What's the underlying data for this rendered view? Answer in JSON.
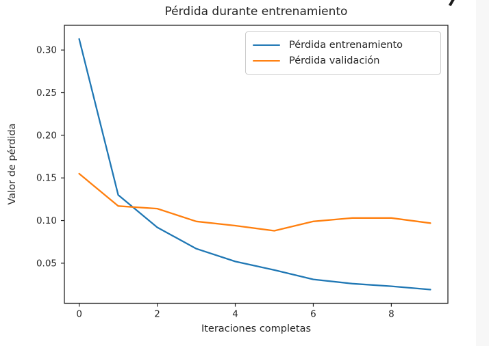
{
  "chart_data": {
    "type": "line",
    "title": "Pérdida durante entrenamiento",
    "xlabel": "Iteraciones completas",
    "ylabel": "Valor de pérdida",
    "grid": false,
    "legend_position": "upper right",
    "x": [
      0,
      1,
      2,
      3,
      4,
      5,
      6,
      7,
      8,
      9
    ],
    "series": [
      {
        "name": "Pérdida entrenamiento",
        "color": "#1f77b4",
        "values": [
          0.313,
          0.13,
          0.092,
          0.067,
          0.052,
          0.042,
          0.031,
          0.026,
          0.023,
          0.019
        ]
      },
      {
        "name": "Pérdida validación",
        "color": "#ff7f0e",
        "values": [
          0.155,
          0.117,
          0.114,
          0.099,
          0.094,
          0.088,
          0.099,
          0.103,
          0.103,
          0.097
        ]
      }
    ],
    "xlim": [
      -0.38,
      9.45
    ],
    "ylim": [
      0.003,
      0.329
    ],
    "xticks": {
      "values": [
        0,
        2,
        4,
        6,
        8
      ],
      "labels": [
        "0",
        "2",
        "4",
        "6",
        "8"
      ]
    },
    "yticks": {
      "values": [
        0.05,
        0.1,
        0.15,
        0.2,
        0.25,
        0.3
      ],
      "labels": [
        "0.05",
        "0.10",
        "0.15",
        "0.20",
        "0.25",
        "0.30"
      ]
    },
    "axis_color": "#222222",
    "text_color": "#262626"
  }
}
